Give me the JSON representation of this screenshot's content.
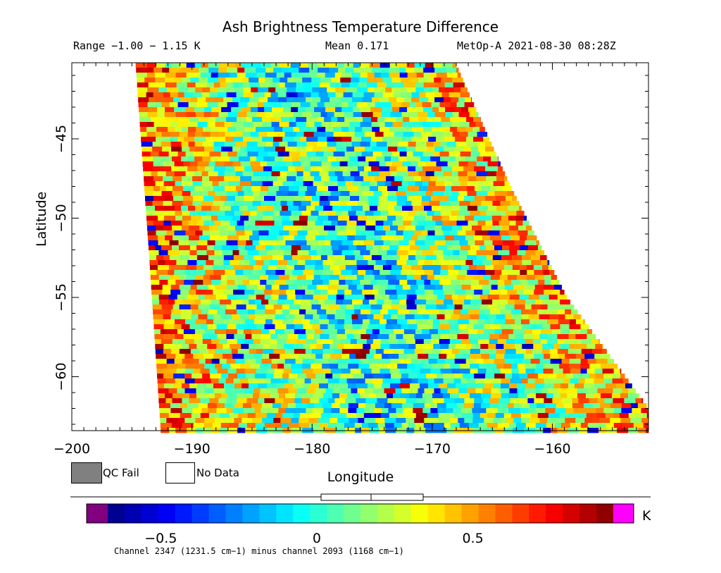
{
  "chart_data": {
    "type": "heatmap",
    "title": "Ash Brightness Temperature Difference",
    "range_text": "Range −1.00 − 1.15 K",
    "mean_text": "Mean 0.171",
    "source_text": "MetOp-A 2021-08-30 08:28Z",
    "xlabel": "Longitude",
    "ylabel": "Latitude",
    "xlim": [
      -200,
      -152
    ],
    "ylim": [
      -63.4,
      -40.2
    ],
    "x_ticks": [
      "−200",
      "−190",
      "−180",
      "−170",
      "−160"
    ],
    "x_tick_values": [
      -200,
      -190,
      -180,
      -170,
      -160
    ],
    "y_ticks": [
      "−45",
      "−50",
      "−55",
      "−60"
    ],
    "y_tick_values": [
      -45,
      -50,
      -55,
      -60
    ],
    "swath": {
      "left_edge": [
        [
          -194.7,
          -40.2
        ],
        [
          -193.6,
          -52
        ],
        [
          -192.6,
          -63.4
        ]
      ],
      "right_edge": [
        [
          -168.1,
          -40.2
        ],
        [
          -163.5,
          -48
        ],
        [
          -158.8,
          -55
        ],
        [
          -152,
          -62
        ]
      ]
    },
    "legend_items": [
      "QC Fail",
      "No Data"
    ],
    "legend_colors": [
      "#808080",
      "#ffffff"
    ],
    "colorbar": {
      "ticks": [
        "−0.5",
        "0",
        "0.5"
      ],
      "tick_values": [
        -0.5,
        0,
        0.5
      ],
      "unit": "K",
      "vmin": -0.67,
      "vmax": 0.95,
      "under_color": "#800080",
      "over_color": "#ff00ff",
      "colormap": "jet"
    },
    "footnote": "Channel 2347 (1231.5 cm−1) minus channel 2093 (1168 cm−1)"
  }
}
